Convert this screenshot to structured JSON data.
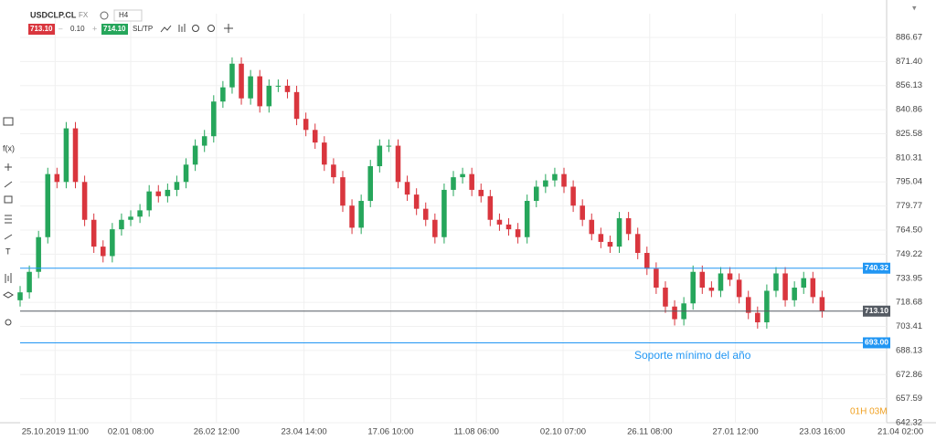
{
  "toolbar": {
    "symbol": "USDCLP.CL",
    "market": "FX",
    "timeframe": "H4",
    "sell": "713.10",
    "lot": "0.10",
    "buy": "714.10",
    "sltp": "SL/TP"
  },
  "left_toolbar": {
    "function": "f(x)",
    "text": "T"
  },
  "chart_data": {
    "type": "candlestick",
    "open": [
      720,
      725,
      738,
      760,
      800,
      795,
      829,
      795,
      771,
      754,
      748,
      765,
      771,
      773,
      777,
      789,
      786,
      790,
      795,
      806,
      818,
      824,
      846,
      855,
      870,
      848,
      862,
      843,
      856,
      856,
      852,
      835,
      828,
      820,
      806,
      798,
      780,
      766,
      783,
      805,
      818,
      818,
      795,
      787,
      778,
      771,
      760,
      790,
      798,
      800,
      790,
      786,
      771,
      768,
      765,
      760,
      783,
      792,
      796,
      800,
      792,
      780,
      771,
      762,
      757,
      754,
      772,
      762,
      750,
      740,
      728,
      716,
      708,
      718,
      738,
      728,
      726,
      737,
      733,
      722,
      712,
      706,
      726,
      737,
      720,
      728,
      734,
      722
    ],
    "high": [
      729,
      742,
      764,
      804,
      804,
      833,
      833,
      799,
      775,
      758,
      769,
      775,
      777,
      781,
      793,
      793,
      794,
      799,
      810,
      822,
      828,
      850,
      859,
      874,
      874,
      866,
      866,
      860,
      860,
      860,
      856,
      839,
      832,
      824,
      810,
      802,
      784,
      787,
      809,
      822,
      822,
      822,
      799,
      791,
      782,
      775,
      794,
      802,
      804,
      804,
      794,
      790,
      775,
      772,
      769,
      787,
      796,
      800,
      804,
      804,
      796,
      784,
      775,
      766,
      761,
      776,
      776,
      766,
      754,
      744,
      732,
      720,
      722,
      742,
      742,
      732,
      741,
      741,
      737,
      726,
      716,
      730,
      741,
      741,
      732,
      738,
      738,
      726
    ],
    "low": [
      716,
      721,
      734,
      756,
      791,
      791,
      791,
      767,
      750,
      744,
      744,
      761,
      767,
      769,
      773,
      782,
      782,
      786,
      791,
      802,
      814,
      820,
      842,
      851,
      844,
      844,
      839,
      839,
      852,
      848,
      831,
      824,
      816,
      802,
      794,
      776,
      762,
      762,
      779,
      801,
      814,
      791,
      783,
      774,
      767,
      756,
      756,
      786,
      794,
      786,
      782,
      767,
      764,
      761,
      756,
      756,
      779,
      788,
      792,
      788,
      776,
      767,
      758,
      753,
      750,
      750,
      758,
      746,
      736,
      724,
      712,
      704,
      704,
      714,
      724,
      722,
      722,
      729,
      718,
      708,
      702,
      702,
      722,
      716,
      716,
      724,
      718,
      709
    ],
    "close": [
      725,
      738,
      760,
      800,
      795,
      829,
      795,
      771,
      754,
      748,
      765,
      771,
      773,
      777,
      789,
      786,
      790,
      795,
      806,
      818,
      824,
      846,
      855,
      870,
      848,
      862,
      843,
      856,
      856,
      852,
      835,
      828,
      820,
      806,
      798,
      780,
      766,
      783,
      805,
      818,
      818,
      795,
      787,
      778,
      771,
      760,
      790,
      798,
      800,
      790,
      786,
      771,
      768,
      765,
      760,
      783,
      792,
      796,
      800,
      792,
      780,
      771,
      762,
      757,
      754,
      772,
      762,
      750,
      740,
      728,
      716,
      708,
      718,
      738,
      728,
      726,
      737,
      733,
      722,
      712,
      706,
      726,
      737,
      720,
      728,
      734,
      722,
      713
    ],
    "up_color": "#26a65b",
    "down_color": "#d9363e",
    "xlim": [
      0,
      94
    ],
    "xticks": [
      {
        "value": 3.8,
        "label": "25.10.2019 11:00"
      },
      {
        "value": 12,
        "label": "02.01 08:00"
      },
      {
        "value": 21.3,
        "label": "26.02 12:00"
      },
      {
        "value": 30.8,
        "label": "23.04 14:00"
      },
      {
        "value": 40.2,
        "label": "17.06 10:00"
      },
      {
        "value": 49.5,
        "label": "11.08 06:00"
      },
      {
        "value": 58.9,
        "label": "02.10 07:00"
      },
      {
        "value": 68.3,
        "label": "26.11 08:00"
      },
      {
        "value": 77.6,
        "label": "27.01 12:00"
      },
      {
        "value": 87,
        "label": "23.03 16:00"
      },
      {
        "value": 95.5,
        "label": "21.04 02:00"
      }
    ],
    "ylim": [
      642.32,
      901.7
    ],
    "yticks": [
      886.67,
      {
        "value": 871.4,
        "label": "871.40"
      },
      856.13,
      840.86,
      825.58,
      810.31,
      795.04,
      779.77,
      {
        "value": 764.5,
        "label": "764.50"
      },
      749.22,
      733.95,
      718.68,
      703.41,
      688.13,
      672.86,
      657.59,
      642.32
    ],
    "grid": true,
    "levels": [
      {
        "value": 740.32,
        "label": "740.32",
        "color": "#2196f3"
      },
      {
        "value": 693,
        "label": "693.00",
        "color": "#2196f3"
      },
      {
        "value": 713.1,
        "label": "713.10",
        "color": "#555b63"
      }
    ],
    "annotation": "Soporte mínimo del año",
    "countdown": "01H 03M"
  }
}
